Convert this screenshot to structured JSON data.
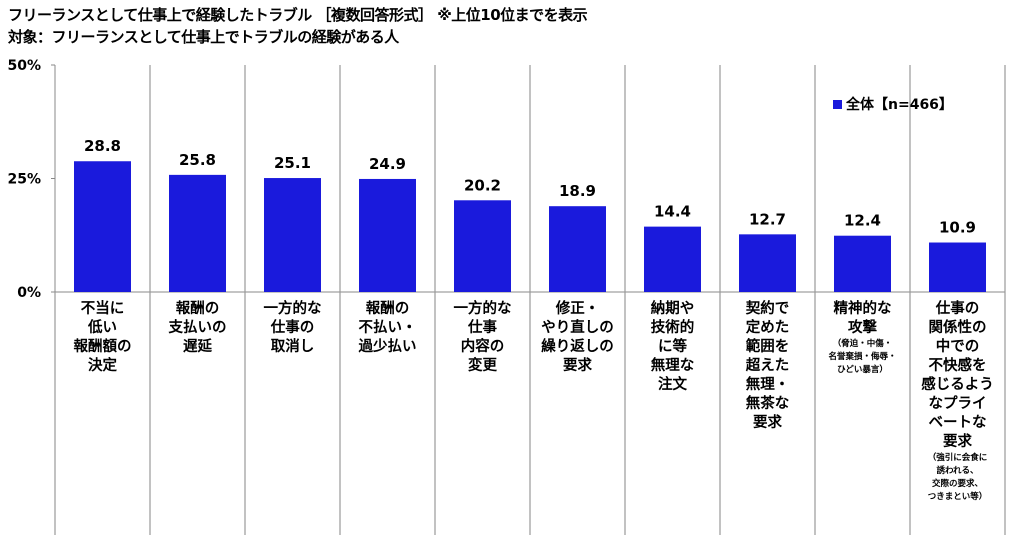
{
  "chart_data": {
    "type": "bar",
    "title": "フリーランスとして仕事上で経験したトラブル ［複数回答形式］ ※上位10位までを表示",
    "subtitle": "対象：フリーランスとして仕事上でトラブルの経験がある人",
    "categories": [
      {
        "label": "不当に\n低い\n報酬額の\n決定",
        "note": ""
      },
      {
        "label": "報酬の\n支払いの\n遅延",
        "note": ""
      },
      {
        "label": "一方的な\n仕事の\n取消し",
        "note": ""
      },
      {
        "label": "報酬の\n不払い・\n過少払い",
        "note": ""
      },
      {
        "label": "一方的な\n仕事\n内容の\n変更",
        "note": ""
      },
      {
        "label": "修正・\nやり直しの\n繰り返しの\n要求",
        "note": ""
      },
      {
        "label": "納期や\n技術的\nに等\n無理な\n注文",
        "note": ""
      },
      {
        "label": "契約で\n定めた\n範囲を\n超えた\n無理・\n無茶な\n要求",
        "note": ""
      },
      {
        "label": "精神的な\n攻撃",
        "note": "（脅迫・中傷・\n名誉棄損・侮辱・\nひどい暴言）"
      },
      {
        "label": "仕事の\n関係性の\n中での\n不快感を\n感じるよう\nなプライ\nベートな\n要求",
        "note": "（強引に会食に\n誘われる、\n交際の要求、\nつきまとい等）"
      }
    ],
    "series": [
      {
        "name": "全体【n=466】",
        "values": [
          28.8,
          25.8,
          25.1,
          24.9,
          20.2,
          18.9,
          14.4,
          12.7,
          12.4,
          10.9
        ],
        "color": "#1a1adc"
      }
    ],
    "ylim": [
      0,
      50
    ],
    "yticks": [
      "0%",
      "25%",
      "50%"
    ],
    "ytick_values": [
      0,
      25,
      50
    ],
    "legend": "top-right",
    "grid": false
  }
}
